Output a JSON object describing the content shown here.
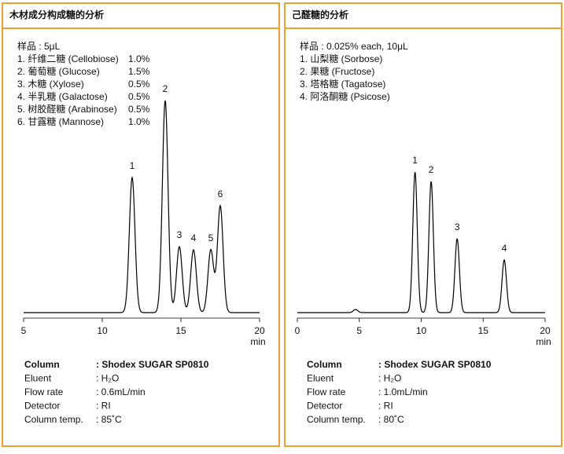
{
  "chart_data": [
    {
      "type": "line",
      "title": "木材成分构成糖的分析",
      "sample": "样品 : 5μL",
      "components": [
        {
          "name": "1. 纤维二糖 (Cellobiose)",
          "amount": "1.0%"
        },
        {
          "name": "2. 葡萄糖 (Glucose)",
          "amount": "1.5%"
        },
        {
          "name": "3. 木糖 (Xylose)",
          "amount": "0.5%"
        },
        {
          "name": "4. 半乳糖 (Galactose)",
          "amount": "0.5%"
        },
        {
          "name": "5. 树胶醛糖 (Arabinose)",
          "amount": "0.5%"
        },
        {
          "name": "6. 甘露糖 (Mannose)",
          "amount": "1.0%"
        }
      ],
      "categories": [
        "1",
        "2",
        "3",
        "4",
        "5",
        "6"
      ],
      "x": [
        11.9,
        14.0,
        14.9,
        15.8,
        16.9,
        17.5
      ],
      "values": [
        172,
        270,
        84,
        80,
        80,
        136
      ],
      "color": "#000000",
      "xlim": [
        5,
        20
      ],
      "xticks": [
        5,
        10,
        15,
        20
      ],
      "xlabel": "min",
      "conditions": [
        [
          "Column",
          ": Shodex SUGAR SP0810"
        ],
        [
          "Eluent",
          ": H₂O"
        ],
        [
          "Flow rate",
          ": 0.6mL/min"
        ],
        [
          "Detector",
          ": RI"
        ],
        [
          "Column temp.",
          ": 85˚C"
        ]
      ]
    },
    {
      "type": "line",
      "title": "己醛糖的分析",
      "sample": "样品 : 0.025% each, 10μL",
      "components": [
        {
          "name": "1. 山梨糖 (Sorbose)"
        },
        {
          "name": "2. 果糖 (Fructose)"
        },
        {
          "name": "3. 塔格糖 (Tagatose)"
        },
        {
          "name": "4. 阿洛酮糖 (Psicose)"
        }
      ],
      "categories": [
        null,
        "1",
        "2",
        "3",
        "4"
      ],
      "x": [
        4.7,
        9.5,
        10.8,
        12.9,
        16.7
      ],
      "values": [
        4,
        179,
        167,
        94,
        67
      ],
      "color": "#000000",
      "xlim": [
        0,
        20
      ],
      "xticks": [
        0,
        5,
        10,
        15,
        20
      ],
      "xlabel": "min",
      "conditions": [
        [
          "Column",
          ": Shodex SUGAR SP0810"
        ],
        [
          "Eluent",
          ": H₂O"
        ],
        [
          "Flow rate",
          ": 1.0mL/min"
        ],
        [
          "Detector",
          ": RI"
        ],
        [
          "Column temp.",
          ": 80˚C"
        ]
      ]
    }
  ]
}
